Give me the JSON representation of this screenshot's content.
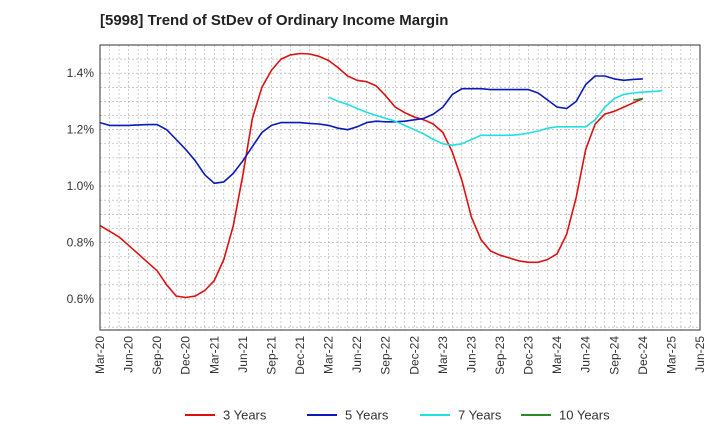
{
  "chart_data": {
    "type": "line",
    "title": "[5998]  Trend of StDev of Ordinary Income Margin",
    "xlabel": "",
    "ylabel": "",
    "x_ticks": [
      "Mar-20",
      "Jun-20",
      "Sep-20",
      "Dec-20",
      "Mar-21",
      "Jun-21",
      "Sep-21",
      "Dec-21",
      "Mar-22",
      "Jun-22",
      "Sep-22",
      "Dec-22",
      "Mar-23",
      "Jun-23",
      "Sep-23",
      "Dec-23",
      "Mar-24",
      "Jun-24",
      "Sep-24",
      "Dec-24",
      "Mar-25",
      "Jun-25"
    ],
    "y_ticks": [
      "0.6%",
      "0.8%",
      "1.0%",
      "1.2%",
      "1.4%"
    ],
    "y_tick_values": [
      0.6,
      0.8,
      1.0,
      1.2,
      1.4
    ],
    "ylim": [
      0.49,
      1.5
    ],
    "grid": true,
    "legend_position": "bottom",
    "series": [
      {
        "name": "3 Years",
        "color": "#dd1111",
        "start_month": 0,
        "values": [
          0.86,
          0.84,
          0.82,
          0.79,
          0.76,
          0.73,
          0.7,
          0.65,
          0.61,
          0.605,
          0.61,
          0.63,
          0.665,
          0.74,
          0.86,
          1.04,
          1.24,
          1.35,
          1.41,
          1.45,
          1.465,
          1.47,
          1.468,
          1.46,
          1.445,
          1.42,
          1.39,
          1.375,
          1.37,
          1.355,
          1.32,
          1.28,
          1.26,
          1.245,
          1.235,
          1.22,
          1.19,
          1.12,
          1.02,
          0.89,
          0.81,
          0.77,
          0.755,
          0.745,
          0.735,
          0.73,
          0.73,
          0.74,
          0.76,
          0.83,
          0.96,
          1.13,
          1.22,
          1.255,
          1.265,
          1.28,
          1.295,
          1.31
        ]
      },
      {
        "name": "5 Years",
        "color": "#0a1ab8",
        "start_month": 0,
        "values": [
          1.225,
          1.215,
          1.215,
          1.215,
          1.217,
          1.218,
          1.218,
          1.2,
          1.165,
          1.13,
          1.09,
          1.04,
          1.01,
          1.015,
          1.045,
          1.09,
          1.14,
          1.19,
          1.215,
          1.225,
          1.225,
          1.225,
          1.222,
          1.22,
          1.215,
          1.205,
          1.2,
          1.21,
          1.225,
          1.23,
          1.228,
          1.228,
          1.23,
          1.235,
          1.24,
          1.255,
          1.28,
          1.325,
          1.345,
          1.345,
          1.345,
          1.342,
          1.342,
          1.342,
          1.342,
          1.342,
          1.33,
          1.305,
          1.28,
          1.275,
          1.3,
          1.36,
          1.39,
          1.39,
          1.38,
          1.375,
          1.378,
          1.38
        ]
      },
      {
        "name": "7 Years",
        "color": "#22e0e0",
        "start_month": 24,
        "values": [
          1.315,
          1.3,
          1.29,
          1.275,
          1.262,
          1.25,
          1.24,
          1.23,
          1.215,
          1.2,
          1.185,
          1.165,
          1.15,
          1.145,
          1.15,
          1.165,
          1.18,
          1.18,
          1.18,
          1.18,
          1.182,
          1.188,
          1.195,
          1.205,
          1.21,
          1.21,
          1.21,
          1.21,
          1.235,
          1.28,
          1.31,
          1.325,
          1.33,
          1.333,
          1.335,
          1.338
        ]
      },
      {
        "name": "10 Years",
        "color": "#2a8a2a",
        "start_month": 56,
        "values": [
          1.305,
          1.31
        ]
      }
    ]
  }
}
